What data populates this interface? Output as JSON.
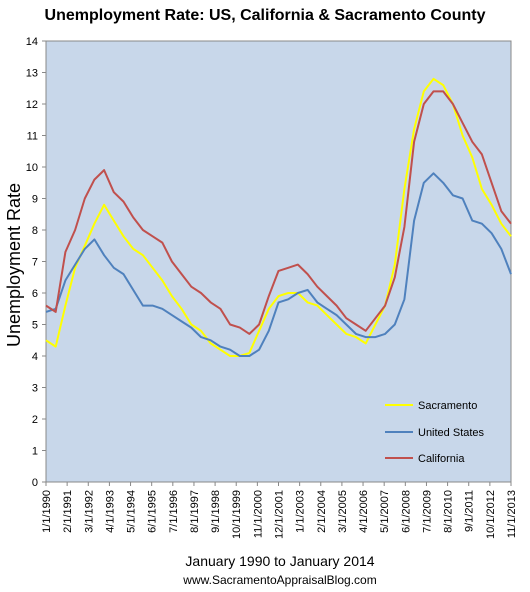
{
  "chart_data": {
    "type": "line",
    "title": "Unemployment Rate: US, California & Sacramento County",
    "ylabel": "Unemployment Rate",
    "xlabel": "January 1990 to January 2014",
    "credit": "www.SacramentoAppraisalBlog.com",
    "ylim": [
      0,
      14
    ],
    "yticks": [
      0,
      1,
      2,
      3,
      4,
      5,
      6,
      7,
      8,
      9,
      10,
      11,
      12,
      13,
      14
    ],
    "xlim": [
      1990.0,
      2014.0
    ],
    "xtick_labels": [
      "1/1/1990",
      "2/1/1991",
      "3/1/1992",
      "4/1/1993",
      "5/1/1994",
      "6/1/1995",
      "7/1/1996",
      "8/1/1997",
      "9/1/1998",
      "10/1/1999",
      "11/1/2000",
      "12/1/2001",
      "1/1/2003",
      "2/1/2004",
      "3/1/2005",
      "4/1/2006",
      "5/1/2007",
      "6/1/2008",
      "7/1/2009",
      "8/1/2010",
      "9/1/2011",
      "10/1/2012",
      "11/1/2013"
    ],
    "grid": false,
    "legend_position": "lower-right",
    "plot_background": "#c8d7ea",
    "series": [
      {
        "name": "Sacramento",
        "color": "#ffff00",
        "x": [
          1990.0,
          1990.5,
          1991.0,
          1991.5,
          1992.0,
          1992.5,
          1993.0,
          1993.5,
          1994.0,
          1994.5,
          1995.0,
          1995.5,
          1996.0,
          1996.5,
          1997.0,
          1997.5,
          1998.0,
          1998.5,
          1999.0,
          1999.5,
          2000.0,
          2000.5,
          2001.0,
          2001.5,
          2002.0,
          2002.5,
          2003.0,
          2003.5,
          2004.0,
          2004.5,
          2005.0,
          2005.5,
          2006.0,
          2006.5,
          2007.0,
          2007.5,
          2008.0,
          2008.5,
          2009.0,
          2009.5,
          2010.0,
          2010.5,
          2011.0,
          2011.5,
          2012.0,
          2012.5,
          2013.0,
          2013.5,
          2014.0
        ],
        "values": [
          4.5,
          4.3,
          5.6,
          6.8,
          7.5,
          8.2,
          8.8,
          8.3,
          7.8,
          7.4,
          7.2,
          6.8,
          6.4,
          5.9,
          5.5,
          5.0,
          4.8,
          4.4,
          4.2,
          4.0,
          4.0,
          4.1,
          4.8,
          5.5,
          5.9,
          6.0,
          6.0,
          5.7,
          5.6,
          5.3,
          5.0,
          4.7,
          4.6,
          4.4,
          5.0,
          5.6,
          6.9,
          9.3,
          11.2,
          12.4,
          12.8,
          12.6,
          12.0,
          11.0,
          10.3,
          9.3,
          8.8,
          8.2,
          7.8
        ]
      },
      {
        "name": "United States",
        "color": "#4f81bd",
        "x": [
          1990.0,
          1990.5,
          1991.0,
          1991.5,
          1992.0,
          1992.5,
          1993.0,
          1993.5,
          1994.0,
          1994.5,
          1995.0,
          1995.5,
          1996.0,
          1996.5,
          1997.0,
          1997.5,
          1998.0,
          1998.5,
          1999.0,
          1999.5,
          2000.0,
          2000.5,
          2001.0,
          2001.5,
          2002.0,
          2002.5,
          2003.0,
          2003.5,
          2004.0,
          2004.5,
          2005.0,
          2005.5,
          2006.0,
          2006.5,
          2007.0,
          2007.5,
          2008.0,
          2008.5,
          2009.0,
          2009.5,
          2010.0,
          2010.5,
          2011.0,
          2011.5,
          2012.0,
          2012.5,
          2013.0,
          2013.5,
          2014.0
        ],
        "values": [
          5.4,
          5.5,
          6.4,
          6.9,
          7.4,
          7.7,
          7.2,
          6.8,
          6.6,
          6.1,
          5.6,
          5.6,
          5.5,
          5.3,
          5.1,
          4.9,
          4.6,
          4.5,
          4.3,
          4.2,
          4.0,
          4.0,
          4.2,
          4.8,
          5.7,
          5.8,
          6.0,
          6.1,
          5.7,
          5.5,
          5.3,
          5.0,
          4.7,
          4.6,
          4.6,
          4.7,
          5.0,
          5.8,
          8.3,
          9.5,
          9.8,
          9.5,
          9.1,
          9.0,
          8.3,
          8.2,
          7.9,
          7.4,
          6.6
        ]
      },
      {
        "name": "California",
        "color": "#c0504d",
        "x": [
          1990.0,
          1990.5,
          1991.0,
          1991.5,
          1992.0,
          1992.5,
          1993.0,
          1993.5,
          1994.0,
          1994.5,
          1995.0,
          1995.5,
          1996.0,
          1996.5,
          1997.0,
          1997.5,
          1998.0,
          1998.5,
          1999.0,
          1999.5,
          2000.0,
          2000.5,
          2001.0,
          2001.5,
          2002.0,
          2002.5,
          2003.0,
          2003.5,
          2004.0,
          2004.5,
          2005.0,
          2005.5,
          2006.0,
          2006.5,
          2007.0,
          2007.5,
          2008.0,
          2008.5,
          2009.0,
          2009.5,
          2010.0,
          2010.5,
          2011.0,
          2011.5,
          2012.0,
          2012.5,
          2013.0,
          2013.5,
          2014.0
        ],
        "values": [
          5.6,
          5.4,
          7.3,
          8.0,
          9.0,
          9.6,
          9.9,
          9.2,
          8.9,
          8.4,
          8.0,
          7.8,
          7.6,
          7.0,
          6.6,
          6.2,
          6.0,
          5.7,
          5.5,
          5.0,
          4.9,
          4.7,
          5.0,
          5.9,
          6.7,
          6.8,
          6.9,
          6.6,
          6.2,
          5.9,
          5.6,
          5.2,
          5.0,
          4.8,
          5.2,
          5.6,
          6.5,
          8.1,
          10.8,
          12.0,
          12.4,
          12.4,
          12.0,
          11.4,
          10.8,
          10.4,
          9.5,
          8.6,
          8.2
        ]
      }
    ]
  }
}
